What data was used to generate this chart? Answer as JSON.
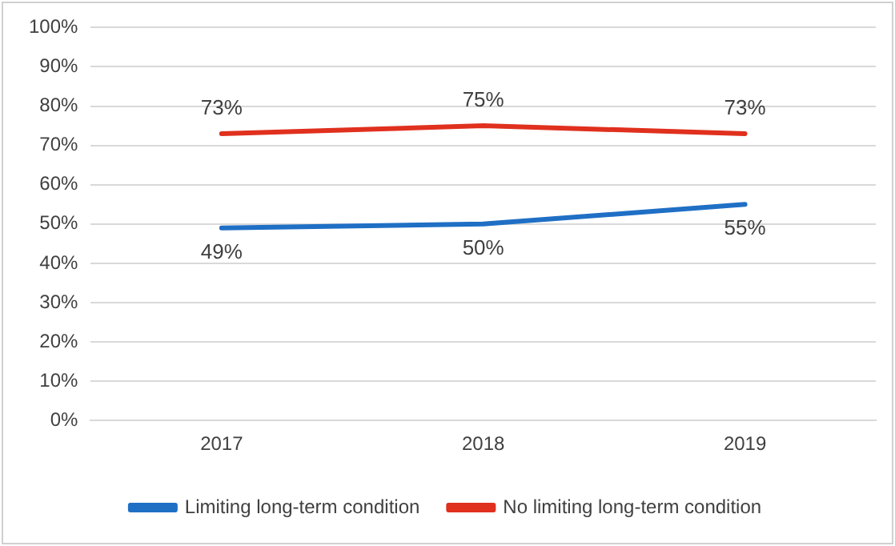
{
  "chart_data": {
    "type": "line",
    "categories": [
      "2017",
      "2018",
      "2019"
    ],
    "series": [
      {
        "name": "Limiting long-term condition",
        "color": "#1f6fc5",
        "values": [
          49,
          50,
          55
        ],
        "value_labels": [
          "49%",
          "50%",
          "55%"
        ]
      },
      {
        "name": "No limiting long-term condition",
        "color": "#e0301e",
        "values": [
          73,
          75,
          73
        ],
        "value_labels": [
          "73%",
          "75%",
          "73%"
        ]
      }
    ],
    "ylim": [
      0,
      100
    ],
    "yticks": [
      {
        "value": 0,
        "label": "0%"
      },
      {
        "value": 10,
        "label": "10%"
      },
      {
        "value": 20,
        "label": "20%"
      },
      {
        "value": 30,
        "label": "30%"
      },
      {
        "value": 40,
        "label": "40%"
      },
      {
        "value": 50,
        "label": "50%"
      },
      {
        "value": 60,
        "label": "60%"
      },
      {
        "value": 70,
        "label": "70%"
      },
      {
        "value": 80,
        "label": "80%"
      },
      {
        "value": 90,
        "label": "90%"
      },
      {
        "value": 100,
        "label": "100%"
      }
    ],
    "grid": "y",
    "legend": "bottom",
    "marker": "none",
    "line_style": "solid"
  }
}
